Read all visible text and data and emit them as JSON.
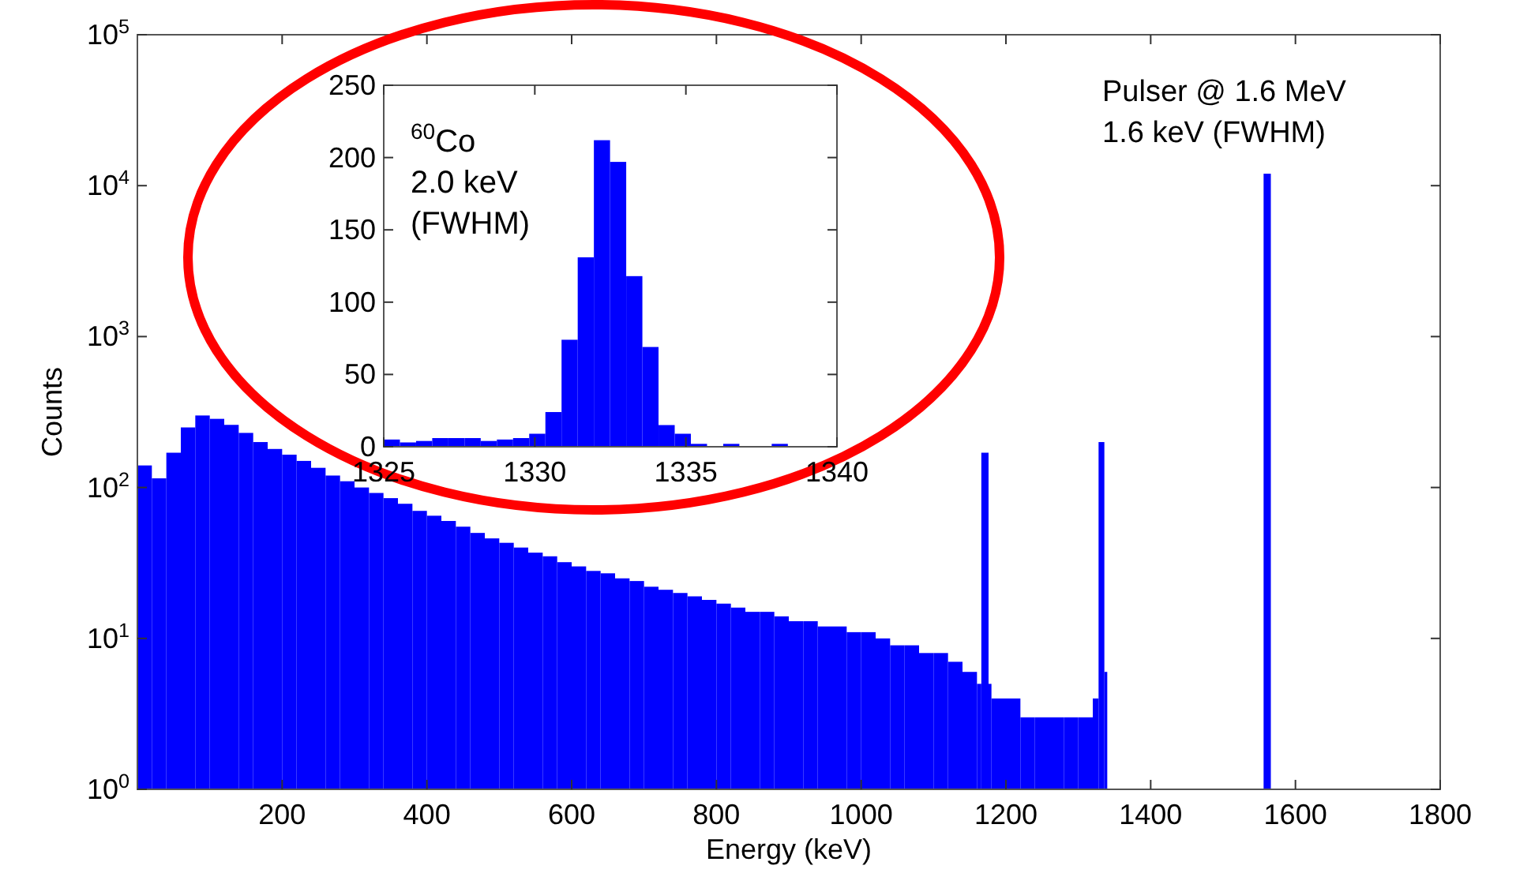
{
  "chart_data": [
    {
      "type": "histogram",
      "xlabel": "Energy (keV)",
      "ylabel": "Counts",
      "color": "#0000ff",
      "log": "y",
      "bins": [
        0,
        20,
        40,
        60,
        80,
        100,
        120,
        140,
        160,
        180,
        200,
        220,
        240,
        260,
        280,
        300,
        320,
        340,
        360,
        380,
        400,
        420,
        440,
        460,
        480,
        500,
        520,
        540,
        560,
        580,
        600,
        620,
        640,
        660,
        680,
        700,
        720,
        740,
        760,
        780,
        800,
        820,
        840,
        860,
        880,
        900,
        920,
        940,
        960,
        980,
        1000,
        1020,
        1040,
        1060,
        1080,
        1100,
        1120,
        1140,
        1160,
        1166,
        1176,
        1180,
        1200,
        1220,
        1240,
        1260,
        1280,
        1300,
        1320,
        1328,
        1336,
        1340,
        1556,
        1566
      ],
      "values": [
        140,
        115,
        170,
        250,
        300,
        285,
        260,
        230,
        200,
        180,
        165,
        150,
        135,
        120,
        110,
        100,
        92,
        85,
        78,
        70,
        65,
        60,
        55,
        50,
        46,
        43,
        40,
        37,
        35,
        32,
        30,
        28,
        27,
        25,
        24,
        22,
        21,
        20,
        19,
        18,
        17,
        16,
        15,
        15,
        14,
        13,
        13,
        12,
        12,
        11,
        11,
        10,
        9,
        9,
        8,
        8,
        7,
        6,
        5,
        170,
        5,
        4,
        4,
        3,
        3,
        3,
        3,
        3,
        4,
        200,
        6,
        null,
        12000
      ],
      "xlim": [
        0,
        1800
      ],
      "xticks": [
        200,
        400,
        600,
        800,
        1000,
        1200,
        1400,
        1600,
        1800
      ],
      "ylim": [
        1,
        100000
      ],
      "yticks": [
        {
          "value": 1,
          "label": "10$^{0}$"
        },
        {
          "value": 10,
          "label": "10$^{1}$"
        },
        {
          "value": 100,
          "label": "10$^{2}$"
        },
        {
          "value": 1000,
          "label": "10$^{3}$"
        },
        {
          "value": 10000,
          "label": "10$^{4}$"
        },
        {
          "value": 100000,
          "label": "10$^{5}$"
        }
      ],
      "annotations": [
        "Pulser @ 1.6 MeV",
        "1.6 keV (FWHM)"
      ]
    },
    {
      "type": "histogram",
      "color": "#0000ff",
      "bins": [
        1325,
        1325.535,
        1326.07,
        1326.605,
        1327.14,
        1327.675,
        1328.21,
        1328.745,
        1329.28,
        1329.815,
        1330.35,
        1330.885,
        1331.42,
        1331.955,
        1332.49,
        1333.025,
        1333.56,
        1334.095,
        1334.63,
        1335.165,
        1335.7,
        1336.235,
        1336.77,
        1337.305,
        1337.84,
        1338.375
      ],
      "values": [
        5,
        3,
        4,
        6,
        6,
        6,
        4,
        5,
        6,
        9,
        24,
        74,
        131,
        212,
        197,
        118,
        69,
        15,
        9,
        2,
        0,
        2,
        0,
        0,
        2
      ],
      "xlim": [
        1325,
        1340
      ],
      "xticks": [
        1325,
        1330,
        1335,
        1340
      ],
      "ylim": [
        0,
        250
      ],
      "yticks": [
        0,
        50,
        100,
        150,
        200,
        250
      ],
      "annotations": [
        "$^{60}$Co",
        "2.0 keV",
        "(FWHM)"
      ]
    }
  ]
}
